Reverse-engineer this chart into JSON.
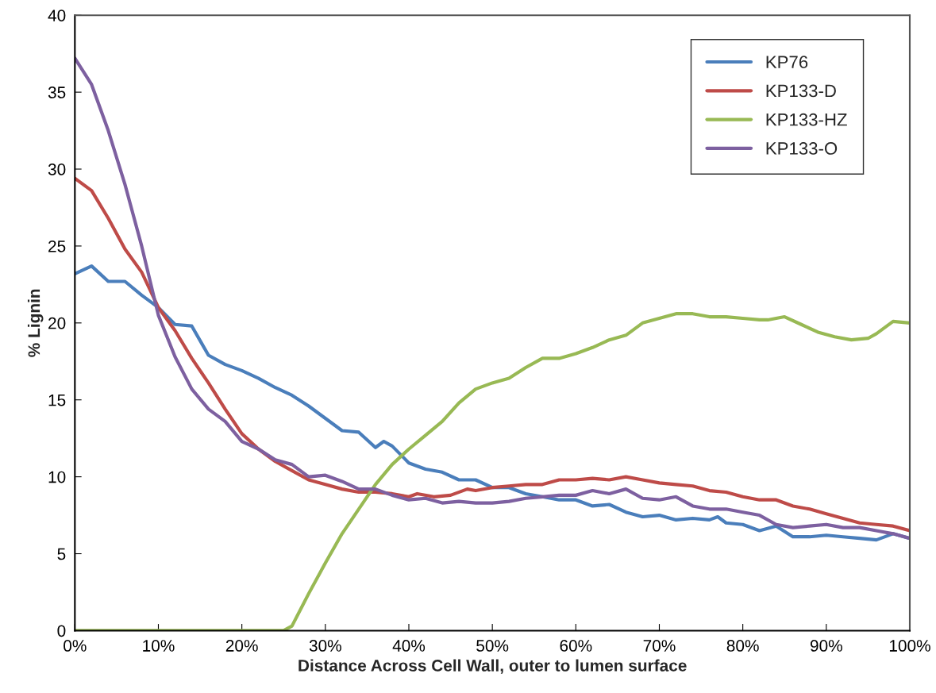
{
  "chart_data": {
    "type": "line",
    "xlabel": "Distance Across Cell Wall, outer to lumen surface",
    "ylabel": "% Lignin",
    "xlim": [
      0,
      100
    ],
    "xticks": [
      {
        "value": 0,
        "label": "0%"
      },
      {
        "value": 10,
        "label": "10%"
      },
      {
        "value": 20,
        "label": "20%"
      },
      {
        "value": 30,
        "label": "30%"
      },
      {
        "value": 40,
        "label": "40%"
      },
      {
        "value": 50,
        "label": "50%"
      },
      {
        "value": 60,
        "label": "60%"
      },
      {
        "value": 70,
        "label": "70%"
      },
      {
        "value": 80,
        "label": "80%"
      },
      {
        "value": 90,
        "label": "90%"
      },
      {
        "value": 100,
        "label": "100%"
      }
    ],
    "ylim": [
      0,
      40
    ],
    "yticks": [
      0,
      5,
      10,
      15,
      20,
      25,
      30,
      35,
      40
    ],
    "grid": false,
    "legend": "top right",
    "marker": "none",
    "line_style": "solid",
    "series": [
      {
        "name": "KP76",
        "color": "#4a7ebb",
        "x": [
          0,
          2,
          4,
          6,
          8,
          10,
          12,
          14,
          16,
          18,
          20,
          22,
          24,
          26,
          28,
          30,
          32,
          34,
          36,
          37,
          38,
          40,
          42,
          44,
          46,
          48,
          50,
          52,
          54,
          56,
          58,
          60,
          62,
          64,
          66,
          68,
          70,
          72,
          74,
          76,
          77,
          78,
          80,
          82,
          84,
          86,
          88,
          90,
          92,
          94,
          96,
          98,
          100
        ],
        "values": [
          23.2,
          23.7,
          22.7,
          22.7,
          21.8,
          21.0,
          19.9,
          19.8,
          17.9,
          17.3,
          16.9,
          16.4,
          15.8,
          15.3,
          14.6,
          13.8,
          13.0,
          12.9,
          11.9,
          12.3,
          12.0,
          10.9,
          10.5,
          10.3,
          9.8,
          9.8,
          9.3,
          9.3,
          8.9,
          8.7,
          8.5,
          8.5,
          8.1,
          8.2,
          7.7,
          7.4,
          7.5,
          7.2,
          7.3,
          7.2,
          7.4,
          7.0,
          6.9,
          6.5,
          6.8,
          6.1,
          6.1,
          6.2,
          6.1,
          6.0,
          5.9,
          6.3,
          6.0
        ]
      },
      {
        "name": "KP133-D",
        "color": "#be4b48",
        "x": [
          0,
          2,
          4,
          6,
          8,
          10,
          12,
          14,
          16,
          18,
          20,
          22,
          24,
          26,
          28,
          30,
          32,
          34,
          36,
          38,
          40,
          41,
          43,
          45,
          47,
          48,
          50,
          52,
          54,
          56,
          58,
          60,
          62,
          64,
          66,
          68,
          70,
          72,
          74,
          76,
          78,
          80,
          82,
          84,
          86,
          88,
          90,
          92,
          94,
          96,
          98,
          100
        ],
        "values": [
          29.4,
          28.6,
          26.8,
          24.8,
          23.3,
          21.0,
          19.5,
          17.7,
          16.1,
          14.4,
          12.8,
          11.8,
          11.0,
          10.4,
          9.8,
          9.5,
          9.2,
          9.0,
          9.0,
          8.9,
          8.7,
          8.9,
          8.7,
          8.8,
          9.2,
          9.1,
          9.3,
          9.4,
          9.5,
          9.5,
          9.8,
          9.8,
          9.9,
          9.8,
          10.0,
          9.8,
          9.6,
          9.5,
          9.4,
          9.1,
          9.0,
          8.7,
          8.5,
          8.5,
          8.1,
          7.9,
          7.6,
          7.3,
          7.0,
          6.9,
          6.8,
          6.5
        ]
      },
      {
        "name": "KP133-HZ",
        "color": "#98b954",
        "x": [
          0,
          10,
          20,
          25,
          26,
          28,
          30,
          32,
          34,
          36,
          38,
          40,
          42,
          44,
          46,
          48,
          50,
          52,
          54,
          56,
          58,
          60,
          62,
          64,
          66,
          68,
          70,
          72,
          74,
          76,
          78,
          80,
          82,
          83,
          85,
          87,
          89,
          91,
          93,
          95,
          96,
          98,
          100
        ],
        "values": [
          0,
          0,
          0,
          0,
          0.3,
          2.4,
          4.4,
          6.3,
          7.9,
          9.5,
          10.8,
          11.8,
          12.7,
          13.6,
          14.8,
          15.7,
          16.1,
          16.4,
          17.1,
          17.7,
          17.7,
          18.0,
          18.4,
          18.9,
          19.2,
          20.0,
          20.3,
          20.6,
          20.6,
          20.4,
          20.4,
          20.3,
          20.2,
          20.2,
          20.4,
          19.9,
          19.4,
          19.1,
          18.9,
          19.0,
          19.3,
          20.1,
          20.0
        ]
      },
      {
        "name": "KP133-O",
        "color": "#7d60a0",
        "x": [
          0,
          2,
          4,
          6,
          8,
          10,
          12,
          14,
          16,
          18,
          20,
          22,
          24,
          26,
          28,
          30,
          32,
          34,
          36,
          38,
          40,
          42,
          44,
          46,
          48,
          50,
          52,
          54,
          56,
          58,
          60,
          62,
          64,
          66,
          68,
          70,
          72,
          74,
          76,
          78,
          80,
          82,
          84,
          86,
          88,
          90,
          92,
          94,
          96,
          98,
          100
        ],
        "values": [
          37.2,
          35.5,
          32.5,
          29.0,
          25.0,
          20.5,
          17.8,
          15.7,
          14.4,
          13.6,
          12.3,
          11.8,
          11.1,
          10.8,
          10.0,
          10.1,
          9.7,
          9.2,
          9.2,
          8.8,
          8.5,
          8.6,
          8.3,
          8.4,
          8.3,
          8.3,
          8.4,
          8.6,
          8.7,
          8.8,
          8.8,
          9.1,
          8.9,
          9.2,
          8.6,
          8.5,
          8.7,
          8.1,
          7.9,
          7.9,
          7.7,
          7.5,
          6.9,
          6.7,
          6.8,
          6.9,
          6.7,
          6.7,
          6.5,
          6.3,
          6.0
        ]
      }
    ]
  }
}
